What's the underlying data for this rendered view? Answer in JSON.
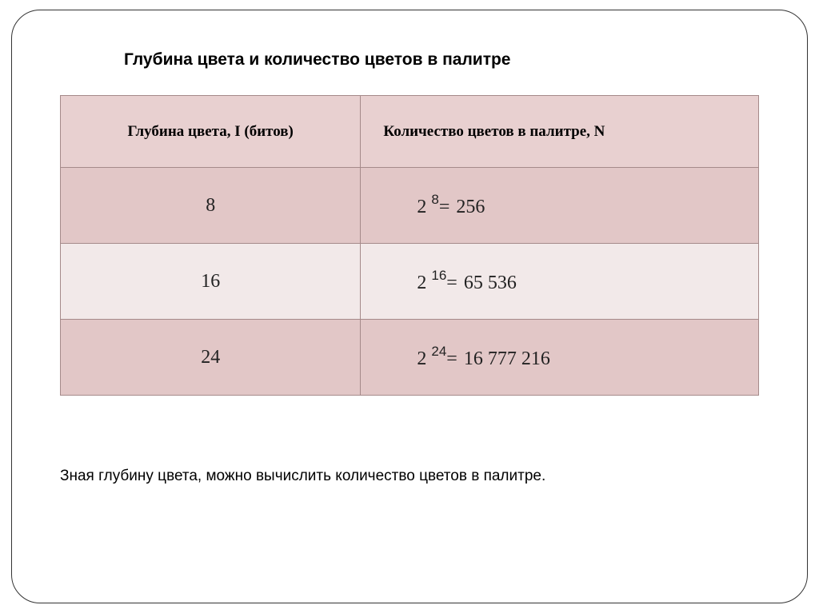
{
  "title": "Глубина цвета и количество цветов в палитре",
  "table": {
    "headers": {
      "col_a": "Глубина цвета, I (битов)",
      "col_b": "Количество цветов в палитре, N"
    },
    "rows": [
      {
        "depth": "8",
        "base": "2",
        "exp": "8",
        "value": "256"
      },
      {
        "depth": "16",
        "base": "2",
        "exp": "16",
        "value": "65 536"
      },
      {
        "depth": "24",
        "base": "2",
        "exp": "24",
        "value": "16 777 216"
      }
    ],
    "colors": {
      "header_bg": "#e8d0d0",
      "row_odd_bg": "#e2c7c7",
      "row_even_bg": "#f2e9e9",
      "border": "#a58a8a"
    }
  },
  "footer": "Зная глубину цвета, можно вычислить количество цветов в палитре.",
  "eq_sign": "="
}
